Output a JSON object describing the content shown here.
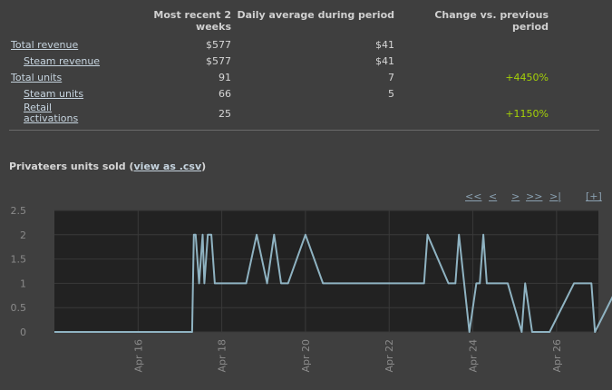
{
  "table": {
    "headers": {
      "col1": "Most recent 2 weeks",
      "col2": "Daily average during period",
      "col3": "Change vs. previous period"
    },
    "rows": [
      {
        "label": "Total revenue",
        "recent": "$577",
        "avg": "$41",
        "change": ""
      },
      {
        "label": "Steam revenue",
        "recent": "$577",
        "avg": "$41",
        "change": ""
      },
      {
        "label": "Total units",
        "recent": "91",
        "avg": "7",
        "change": "+4450%"
      },
      {
        "label": "Steam units",
        "recent": "66",
        "avg": "5",
        "change": ""
      },
      {
        "label": "Retail activations",
        "recent": "25",
        "avg": "",
        "change": "+1150%"
      }
    ]
  },
  "chart_section": {
    "title_prefix": "Privateers units sold (",
    "csv_link": "view as .csv",
    "title_suffix": ")"
  },
  "nav": {
    "first": "<<",
    "prev": "<",
    "next": ">",
    "fwd": ">>",
    "last": ">|",
    "expand": "[+]"
  },
  "colors": {
    "plot_bg": "#222222",
    "line": "#8fb3c2",
    "positive": "#a4d007"
  },
  "chart_data": {
    "type": "line",
    "title": "",
    "xlabel": "",
    "ylabel": "",
    "xlim": [
      "2014-04-14",
      "2014-04-27"
    ],
    "ylim": [
      0,
      2.5
    ],
    "yticks": [
      0,
      0.5,
      1,
      1.5,
      2,
      2.5
    ],
    "xtick_labels": [
      "Apr 16",
      "Apr 18",
      "Apr 20",
      "Apr 22",
      "Apr 24",
      "Apr 26"
    ],
    "grid": true,
    "series": [
      {
        "values": [
          [
            "2014-04-14 00:00",
            0
          ],
          [
            "2014-04-17 07:00",
            0
          ],
          [
            "2014-04-17 08:00",
            2
          ],
          [
            "2014-04-17 09:00",
            2
          ],
          [
            "2014-04-17 11:00",
            1
          ],
          [
            "2014-04-17 13:00",
            2
          ],
          [
            "2014-04-17 14:00",
            1
          ],
          [
            "2014-04-17 16:00",
            2
          ],
          [
            "2014-04-17 18:00",
            2
          ],
          [
            "2014-04-17 20:00",
            1
          ],
          [
            "2014-04-18 14:00",
            1
          ],
          [
            "2014-04-18 20:00",
            2
          ],
          [
            "2014-04-19 02:00",
            1
          ],
          [
            "2014-04-19 06:00",
            2
          ],
          [
            "2014-04-19 10:00",
            1
          ],
          [
            "2014-04-19 14:00",
            1
          ],
          [
            "2014-04-20 00:00",
            2
          ],
          [
            "2014-04-20 10:00",
            1
          ],
          [
            "2014-04-22 20:00",
            1
          ],
          [
            "2014-04-22 22:00",
            2
          ],
          [
            "2014-04-23 10:00",
            1
          ],
          [
            "2014-04-23 14:00",
            1
          ],
          [
            "2014-04-23 16:00",
            2
          ],
          [
            "2014-04-23 22:00",
            0
          ],
          [
            "2014-04-24 02:00",
            1
          ],
          [
            "2014-04-24 04:00",
            1
          ],
          [
            "2014-04-24 06:00",
            2
          ],
          [
            "2014-04-24 08:00",
            1
          ],
          [
            "2014-04-24 20:00",
            1
          ],
          [
            "2014-04-25 04:00",
            0
          ],
          [
            "2014-04-25 06:00",
            1
          ],
          [
            "2014-04-25 10:00",
            0
          ],
          [
            "2014-04-25 20:00",
            0
          ],
          [
            "2014-04-26 10:00",
            1
          ],
          [
            "2014-04-26 20:00",
            1
          ],
          [
            "2014-04-26 22:00",
            0
          ],
          [
            "2014-04-27 12:00",
            1
          ]
        ]
      }
    ]
  }
}
